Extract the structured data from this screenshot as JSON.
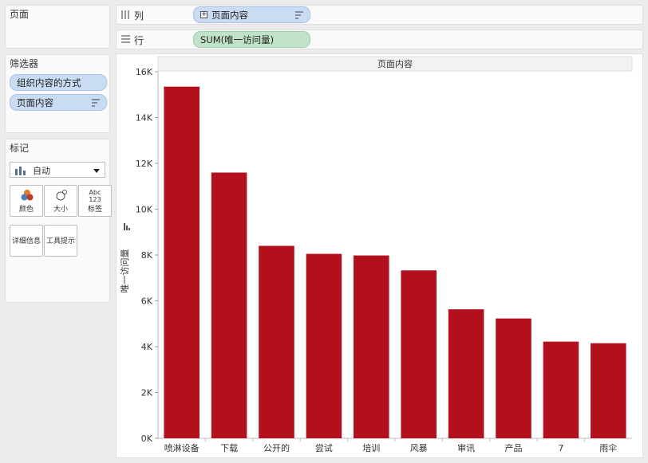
{
  "pages_panel": {
    "title": "页面"
  },
  "filters_panel": {
    "title": "筛选器",
    "items": [
      "组织内容的方式",
      "页面内容"
    ]
  },
  "marks_panel": {
    "title": "标记",
    "mark_type": "自动",
    "cards": [
      "颜色",
      "大小",
      "标签",
      "详细信息",
      "工具提示"
    ],
    "label_card_glyph": "Abc\n123"
  },
  "columns_shelf": {
    "label": "列",
    "pill": "页面内容"
  },
  "rows_shelf": {
    "label": "行",
    "pill": "SUM(唯一访问量)"
  },
  "colors": {
    "bar": "#b3101e",
    "blue_pill": "#c9dcf3",
    "green_pill": "#bfe2c8"
  },
  "chart_data": {
    "type": "bar",
    "title": "页面内容",
    "xlabel": "",
    "ylabel": "唯一访问量",
    "categories": [
      "喷淋设备",
      "下载",
      "公开的",
      "尝试",
      "培训",
      "风暴",
      "审讯",
      "产品",
      "7",
      "雨伞"
    ],
    "values": [
      15350,
      11600,
      8400,
      8050,
      7980,
      7330,
      5630,
      5230,
      4220,
      4150
    ],
    "ylim": [
      0,
      16000
    ],
    "yticks": [
      0,
      2000,
      4000,
      6000,
      8000,
      10000,
      12000,
      14000,
      16000
    ],
    "ytick_labels": [
      "0K",
      "2K",
      "4K",
      "6K",
      "8K",
      "10K",
      "12K",
      "14K",
      "16K"
    ],
    "grid": false,
    "legend": "none"
  }
}
